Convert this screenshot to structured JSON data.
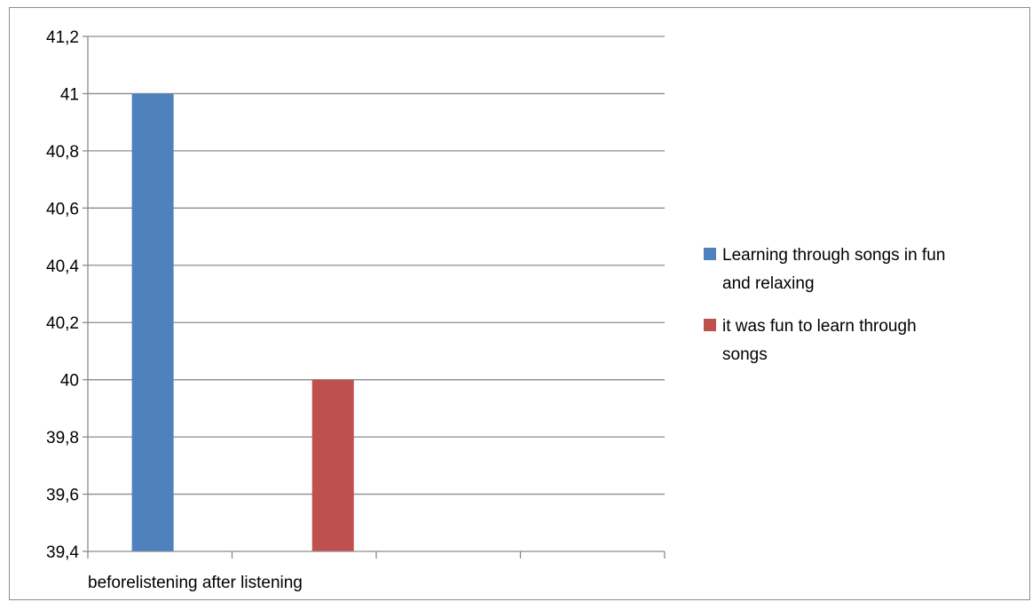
{
  "chart_data": {
    "type": "bar",
    "categories": [
      "beforelistening",
      "after listening"
    ],
    "category_axis_text": "beforelistening after listening",
    "series": [
      {
        "name": "Learning through songs in fun and relaxing",
        "values": [
          41,
          null
        ],
        "color": "#4f81bd"
      },
      {
        "name": "it was fun to learn through songs",
        "values": [
          null,
          40
        ],
        "color": "#c0504d"
      }
    ],
    "ylim": [
      39.4,
      41.2
    ],
    "yticks": [
      "39,4",
      "39,6",
      "39,8",
      "40",
      "40,2",
      "40,4",
      "40,6",
      "40,8",
      "41",
      "41,2"
    ],
    "grid": true,
    "legend_position": "right",
    "legend": [
      {
        "lines": [
          "Learning through songs in fun",
          "and relaxing"
        ],
        "color": "#4f81bd"
      },
      {
        "lines": [
          "it was fun to learn through",
          "songs"
        ],
        "color": "#c0504d"
      }
    ],
    "title": "",
    "xlabel": "",
    "ylabel": ""
  }
}
